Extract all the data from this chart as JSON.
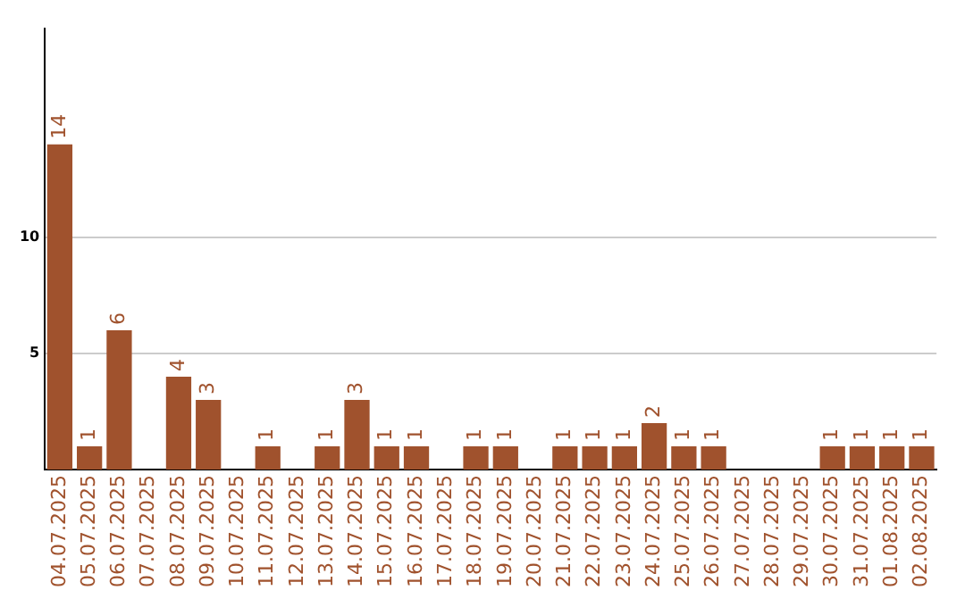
{
  "chart_data": {
    "type": "bar",
    "categories": [
      "04.07.2025",
      "05.07.2025",
      "06.07.2025",
      "07.07.2025",
      "08.07.2025",
      "09.07.2025",
      "10.07.2025",
      "11.07.2025",
      "12.07.2025",
      "13.07.2025",
      "14.07.2025",
      "15.07.2025",
      "16.07.2025",
      "17.07.2025",
      "18.07.2025",
      "19.07.2025",
      "20.07.2025",
      "21.07.2025",
      "22.07.2025",
      "23.07.2025",
      "24.07.2025",
      "25.07.2025",
      "26.07.2025",
      "27.07.2025",
      "28.07.2025",
      "29.07.2025",
      "30.07.2025",
      "31.07.2025",
      "01.08.2025",
      "02.08.2025"
    ],
    "values": [
      14,
      1,
      6,
      0,
      4,
      3,
      0,
      1,
      0,
      1,
      3,
      1,
      1,
      0,
      1,
      1,
      0,
      1,
      1,
      1,
      2,
      1,
      1,
      0,
      0,
      0,
      1,
      1,
      1,
      1
    ],
    "value_labels": [
      "14",
      "1",
      "6",
      null,
      "4",
      "3",
      null,
      "1",
      null,
      "1",
      "3",
      "1",
      "1",
      null,
      "1",
      "1",
      null,
      "1",
      "1",
      "1",
      "2",
      "1",
      "1",
      null,
      null,
      null,
      "1",
      "1",
      "1",
      "1"
    ],
    "color": "#a0522d",
    "ylim": [
      0,
      19
    ],
    "yticks": [
      5,
      10
    ],
    "grid": "y",
    "legend": false
  }
}
